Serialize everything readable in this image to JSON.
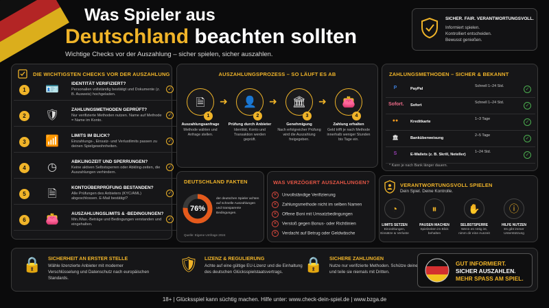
{
  "header": {
    "line1": "Was Spieler aus",
    "line2_highlight": "Deutschland",
    "line2_rest": " beachten sollten",
    "subtitle": "Wichtige Checks vor der Auszahlung – sicher spielen, sicher auszahlen."
  },
  "slogan": {
    "title": "SICHER. FAIR. VERANTWORTUNGSVOLL.",
    "lines": [
      "Informiert spielen.",
      "Kontrolliert entscheiden.",
      "Bewusst genießen."
    ]
  },
  "checks": {
    "title": "DIE WICHTIGSTEN CHECKS VOR DER AUSZAHLUNG",
    "items": [
      {
        "num": "1",
        "title": "IDENTITÄT VERIFIZIERT?",
        "desc": "Personalien vollständig bestätigt und Dokumente (z. B. Ausweis) hochgeladen.",
        "icon": "id-card-icon"
      },
      {
        "num": "2",
        "title": "ZAHLUNGSMETHODEN GEPRÜFT?",
        "desc": "Nur verifizierte Methoden nutzen. Name auf Methode = Name im Konto.",
        "icon": "shield-icon"
      },
      {
        "num": "3",
        "title": "LIMITS IM BLICK?",
        "desc": "Einzahlungs-, Einsatz- und Verlustlimits passen zu deinen Spielgewohnheiten.",
        "icon": "bar-chart-icon"
      },
      {
        "num": "4",
        "title": "ABKLINGZEIT UND SPERRUNGEN?",
        "desc": "Keine aktiven Selbstsperren oder Abkling-zeiten, die Auszahlungen verhindern.",
        "icon": "clock-icon"
      },
      {
        "num": "5",
        "title": "KONTOÜBERPRÜFUNG BESTANDEN?",
        "desc": "Alle Prüfungen des Anbieters (KYC/AML) abgeschlossen. E-Mail bestätigt?",
        "icon": "document-icon"
      },
      {
        "num": "6",
        "title": "AUSZAHLUNGSLIMITS & -BEDINGUNGEN?",
        "desc": "Min./Max.-Beträge und Bedingungen verstanden und eingehalten.",
        "icon": "wallet-icon"
      }
    ]
  },
  "process": {
    "title": "AUSZAHLUNGSPROZESS – SO LÄUFT ES AB",
    "steps": [
      {
        "num": "1",
        "title": "Auszahlungsanfrage",
        "desc": "Methode wählen und Anfrage stellen.",
        "icon": "document-icon"
      },
      {
        "num": "2",
        "title": "Prüfung durch Anbieter",
        "desc": "Identität, Konto und Transaktion werden geprüft.",
        "icon": "user-icon"
      },
      {
        "num": "3",
        "title": "Genehmigung",
        "desc": "Nach erfolgreicher Prüfung wird die Auszahlung freigegeben.",
        "icon": "bank-icon"
      },
      {
        "num": "4",
        "title": "Zahlung erhalten",
        "desc": "Geld trifft je nach Methode innerhalb weniger Stunden bis Tage ein.",
        "icon": "wallet-icon"
      }
    ]
  },
  "payments": {
    "title": "ZAHLUNGSMETHODEN – SICHER & BEKANNT",
    "items": [
      {
        "logo": "P",
        "name": "PayPal",
        "time": "Schnell 1–24 Std.",
        "color": "#3b7bd5"
      },
      {
        "logo": "Sofort.",
        "name": "Sofort",
        "time": "Schnell 1–24 Std.",
        "color": "#ef6c8a"
      },
      {
        "logo": "●●",
        "name": "Kreditkarte",
        "time": "1–3 Tage",
        "color": "#f29a1f"
      },
      {
        "logo": "🏛",
        "name": "Banküberweisung",
        "time": "2–5 Tage",
        "color": "#dddddd"
      },
      {
        "logo": "S",
        "name": "E-Wallets (z. B. Skrill, Neteller)",
        "time": "1–24 Std.",
        "color": "#9b3fb5"
      }
    ],
    "note": "* Kann je nach Bank länger dauern."
  },
  "facts": {
    "title": "DEUTSCHLAND FAKTEN",
    "percent": "76%",
    "percent_value": 0.76,
    "text": "der deutschen Spieler achten auf schnelle Auszahlungen und transparente Bedingungen.",
    "source": "Quelle: Eigene Umfrage 2024"
  },
  "delays": {
    "title": "WAS VERZÖGERT AUSZAHLUNGEN?",
    "items": [
      "Unvollständige Verifizierung",
      "Zahlungsmethode nicht im selben Namen",
      "Offene Boni mit Umsatzbedingungen",
      "Verstoß gegen Bonus- oder Richtlinien",
      "Verdacht auf Betrug oder Geldwäsche"
    ]
  },
  "responsible": {
    "title": "VERANTWORTUNGSVOLL SPIELEN",
    "subtitle": "Dein Spiel. Deine Kontrolle.",
    "items": [
      {
        "title": "LIMITS SETZEN",
        "desc": "Einzahlungen, Einsätze & Verluste",
        "icon": "gauge-icon"
      },
      {
        "title": "PAUSEN MACHEN",
        "desc": "Spielzeiten im Blick behalten",
        "icon": "pause-icon"
      },
      {
        "title": "SELBSTSPERRE",
        "desc": "Wenn es nötig ist, nimm dir eine Auszeit",
        "icon": "hand-icon"
      },
      {
        "title": "HILFE NUTZEN",
        "desc": "Es gibt immer Unterstützung",
        "icon": "info-icon"
      }
    ]
  },
  "bottom": [
    {
      "title": "SICHERHEIT AN ERSTER STELLE",
      "desc": "Wähle lizenzierte Anbieter mit moderner Verschlüsselung und Datenschutz nach europäischen Standards.",
      "icon": "lock-icon"
    },
    {
      "title": "LIZENZ & REGULIERUNG",
      "desc": "Achte auf eine gültige EU-Lizenz und die Einhaltung des deutschen Glücksspielstaatsvertrags.",
      "icon": "shield-check-icon"
    },
    {
      "title": "SICHERE ZAHLUNGEN",
      "desc": "Nutze nur verifizierte Methoden. Schütze deine Daten und teile sie niemals mit Dritten.",
      "icon": "lock-icon"
    }
  ],
  "cta": {
    "line1": "GUT INFORMIERT.",
    "line2": "SICHER AUSZAHLEN.",
    "line3": "MEHR SPASS AM SPIEL."
  },
  "footer": {
    "text": "18+ | Glücksspiel kann süchtig machen. Hilfe unter: www.check-dein-spiel.de | www.bzga.de"
  }
}
